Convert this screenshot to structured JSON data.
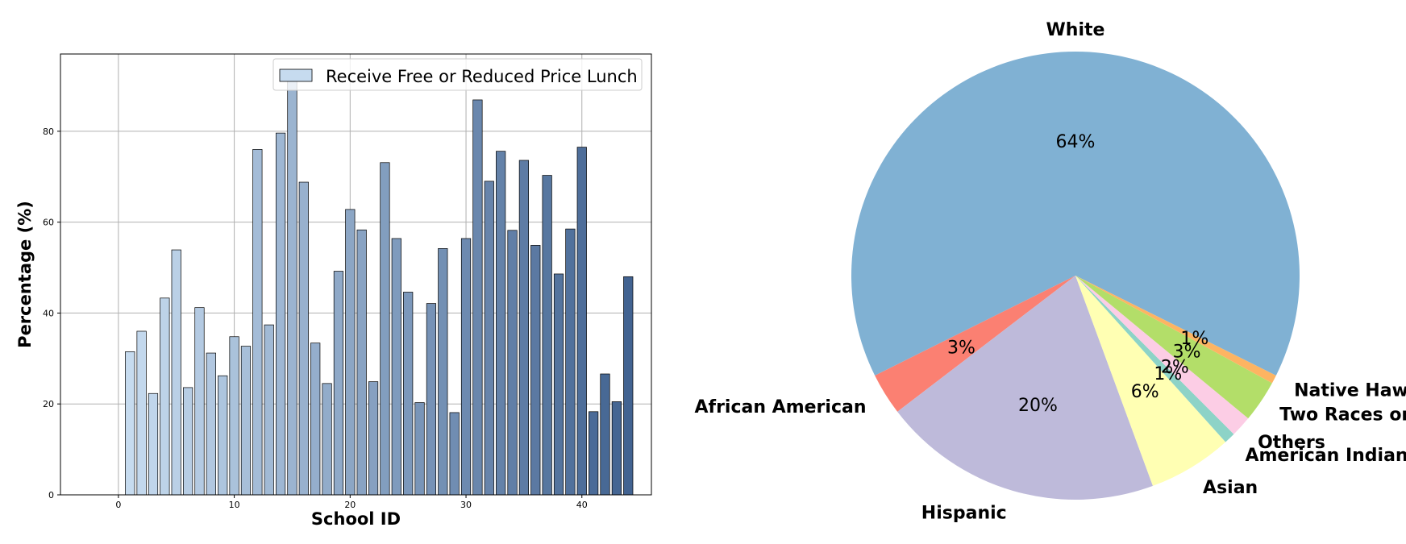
{
  "chart_data": [
    {
      "type": "bar",
      "title": "",
      "xlabel": "School ID",
      "ylabel": "Percentage (%)",
      "legend": "top-right",
      "grid": true,
      "xlim": [
        -5,
        46
      ],
      "ylim": [
        0,
        97
      ],
      "xticks": [
        0,
        10,
        20,
        30,
        40
      ],
      "yticks": [
        0,
        20,
        40,
        60,
        80
      ],
      "series": [
        {
          "name": "Receive Free or Reduced Price Lunch",
          "x": [
            1,
            2,
            3,
            4,
            5,
            6,
            7,
            8,
            9,
            10,
            11,
            12,
            13,
            14,
            15,
            16,
            17,
            18,
            19,
            20,
            21,
            22,
            23,
            24,
            25,
            26,
            27,
            28,
            29,
            30,
            31,
            32,
            33,
            34,
            35,
            36,
            37,
            38,
            39,
            40,
            41,
            42,
            43,
            44
          ],
          "values": [
            31.5,
            36,
            22.3,
            43.3,
            53.9,
            23.6,
            41.2,
            31.2,
            26.2,
            34.8,
            32.7,
            76,
            37.4,
            79.6,
            92.5,
            68.8,
            33.4,
            24.5,
            49.2,
            62.8,
            58.3,
            24.9,
            73.1,
            56.4,
            44.6,
            20.3,
            42.1,
            54.2,
            18.1,
            56.4,
            86.9,
            69,
            75.6,
            58.2,
            73.6,
            54.9,
            70.3,
            48.6,
            58.5,
            76.5,
            18.3,
            26.6,
            20.5,
            48
          ]
        }
      ]
    },
    {
      "type": "pie",
      "title": "",
      "slices": [
        {
          "label": "White",
          "value": 64,
          "pct_label": "64%",
          "color": "#80b1d3"
        },
        {
          "label": "African American",
          "value": 3,
          "pct_label": "3%",
          "color": "#fb8072"
        },
        {
          "label": "Hispanic",
          "value": 20,
          "pct_label": "20%",
          "color": "#bebada"
        },
        {
          "label": "Asian",
          "value": 6,
          "pct_label": "6%",
          "color": "#ffffb3"
        },
        {
          "label": "American Indian",
          "value": 0.8,
          "pct_label": "1%",
          "color": "#8dd3c7"
        },
        {
          "label": "Others",
          "value": 1.5,
          "pct_label": "2%",
          "color": "#fccde5"
        },
        {
          "label": "Two Races or More",
          "value": 3,
          "pct_label": "3%",
          "color": "#b3de69"
        },
        {
          "label": "Native Hawaiian",
          "value": 0.6,
          "pct_label": "1%",
          "color": "#fdb462"
        }
      ]
    }
  ]
}
